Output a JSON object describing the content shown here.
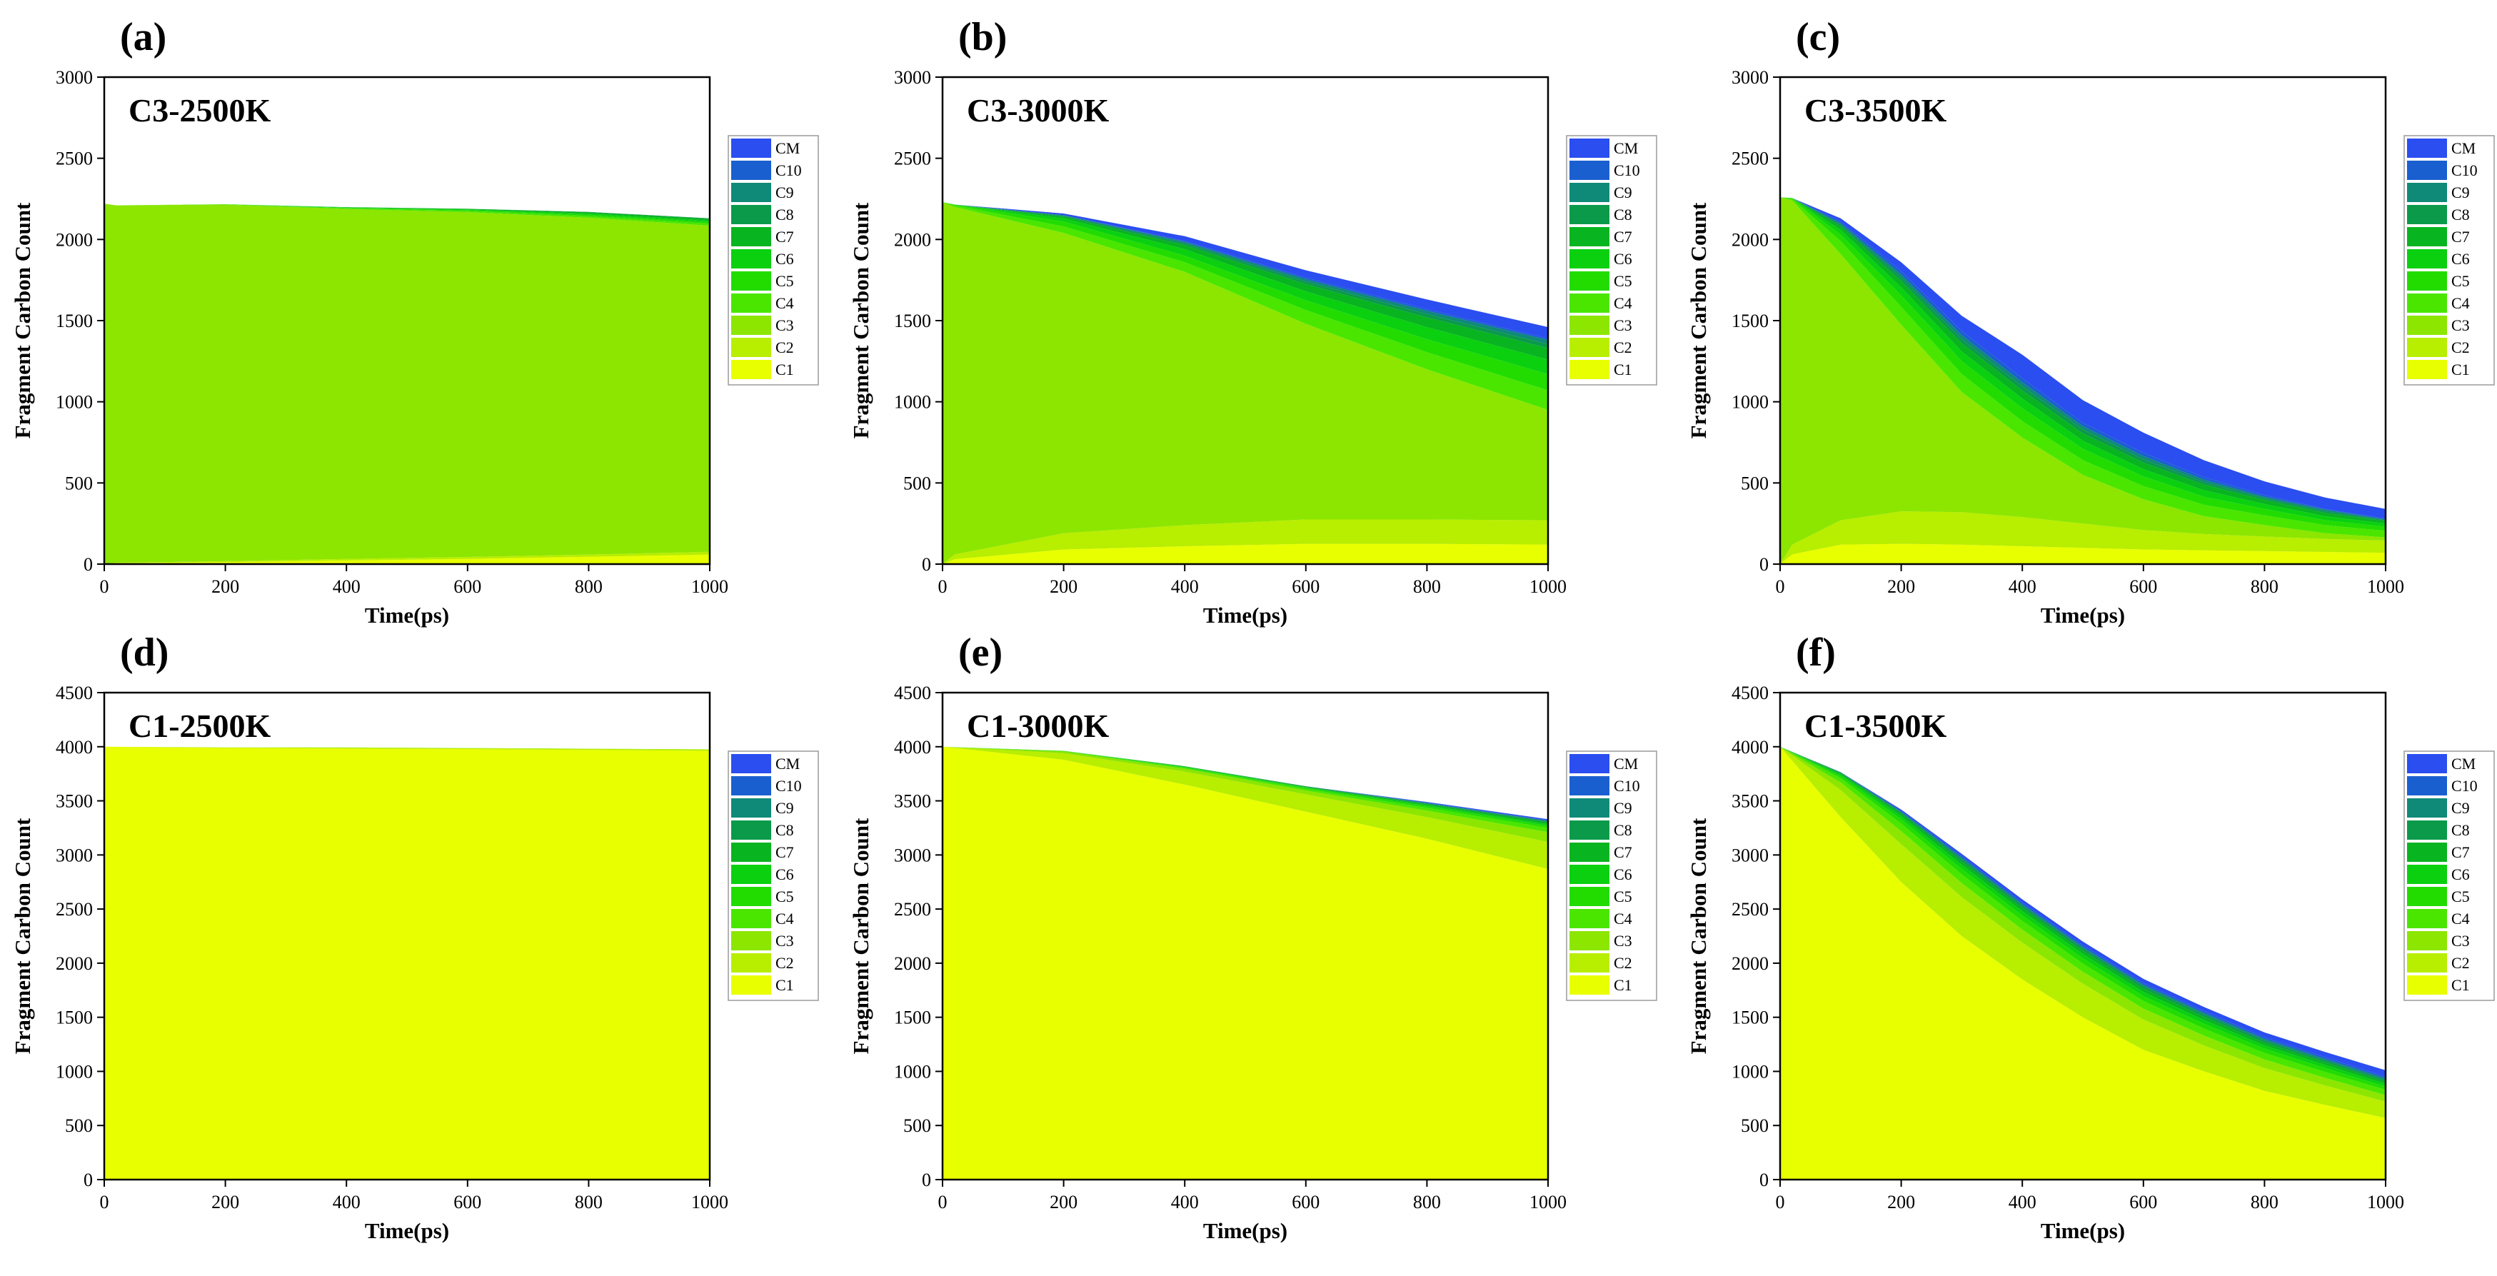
{
  "figure": {
    "legend_colors": {
      "C1": "#e8ff00",
      "C2": "#b8ee00",
      "C3": "#8ce600",
      "C4": "#4ae600",
      "C5": "#22dc00",
      "C6": "#0ad010",
      "C7": "#08b420",
      "C8": "#0a9a4a",
      "C9": "#0f8a78",
      "C10": "#1a5fd0",
      "CM": "#2b4ef0"
    }
  },
  "chart_data": [
    {
      "id": "a",
      "type": "area",
      "stacked": true,
      "panel_label": "(a)",
      "title": "C3-2500K",
      "xlabel": "Time(ps)",
      "ylabel": "Fragment Carbon Count",
      "xlim": [
        0,
        1000
      ],
      "ylim": [
        0,
        3000
      ],
      "xticks": [
        0,
        200,
        400,
        600,
        800,
        1000
      ],
      "yticks": [
        0,
        500,
        1000,
        1500,
        2000,
        2500,
        3000
      ],
      "legend": [
        "CM",
        "C10",
        "C9",
        "C8",
        "C7",
        "C6",
        "C5",
        "C4",
        "C3",
        "C2",
        "C1"
      ],
      "x": [
        0,
        20,
        200,
        400,
        600,
        800,
        1000
      ],
      "series": [
        {
          "name": "C1",
          "values": [
            0,
            6,
            12,
            22,
            32,
            45,
            58
          ]
        },
        {
          "name": "C2",
          "values": [
            0,
            3,
            6,
            10,
            12,
            14,
            18
          ]
        },
        {
          "name": "C3",
          "values": [
            2220,
            2201,
            2197,
            2155,
            2124,
            2075,
            2009
          ]
        },
        {
          "name": "C4",
          "values": [
            0,
            0,
            2,
            5,
            8,
            10,
            12
          ]
        },
        {
          "name": "C5",
          "values": [
            0,
            0,
            0,
            3,
            5,
            8,
            10
          ]
        },
        {
          "name": "C6",
          "values": [
            0,
            0,
            0,
            2,
            4,
            8,
            10
          ]
        },
        {
          "name": "C7",
          "values": [
            0,
            0,
            0,
            2,
            4,
            8,
            10
          ]
        },
        {
          "name": "C8",
          "values": [
            0,
            0,
            0,
            0,
            0,
            2,
            3
          ]
        },
        {
          "name": "C9",
          "values": [
            0,
            0,
            0,
            0,
            0,
            0,
            0
          ]
        },
        {
          "name": "C10",
          "values": [
            0,
            0,
            0,
            0,
            0,
            0,
            0
          ]
        },
        {
          "name": "CM",
          "values": [
            0,
            0,
            0,
            0,
            0,
            0,
            0
          ]
        }
      ]
    },
    {
      "id": "b",
      "type": "area",
      "stacked": true,
      "panel_label": "(b)",
      "title": "C3-3000K",
      "xlabel": "Time(ps)",
      "ylabel": "Fragment Carbon Count",
      "xlim": [
        0,
        1000
      ],
      "ylim": [
        0,
        3000
      ],
      "xticks": [
        0,
        200,
        400,
        600,
        800,
        1000
      ],
      "yticks": [
        0,
        500,
        1000,
        1500,
        2000,
        2500,
        3000
      ],
      "legend": [
        "CM",
        "C10",
        "C9",
        "C8",
        "C7",
        "C6",
        "C5",
        "C4",
        "C3",
        "C2",
        "C1"
      ],
      "x": [
        0,
        20,
        200,
        400,
        600,
        800,
        1000
      ],
      "series": [
        {
          "name": "C1",
          "values": [
            0,
            30,
            90,
            110,
            125,
            125,
            120
          ]
        },
        {
          "name": "C2",
          "values": [
            0,
            30,
            100,
            130,
            150,
            150,
            150
          ]
        },
        {
          "name": "C3",
          "values": [
            2230,
            2140,
            1850,
            1560,
            1205,
            925,
            680
          ]
        },
        {
          "name": "C4",
          "values": [
            0,
            10,
            40,
            60,
            85,
            105,
            120
          ]
        },
        {
          "name": "C5",
          "values": [
            0,
            5,
            30,
            40,
            60,
            80,
            100
          ]
        },
        {
          "name": "C6",
          "values": [
            0,
            0,
            20,
            40,
            55,
            75,
            90
          ]
        },
        {
          "name": "C7",
          "values": [
            0,
            0,
            10,
            25,
            45,
            60,
            70
          ]
        },
        {
          "name": "C8",
          "values": [
            0,
            0,
            5,
            10,
            15,
            20,
            25
          ]
        },
        {
          "name": "C9",
          "values": [
            0,
            0,
            5,
            10,
            15,
            20,
            25
          ]
        },
        {
          "name": "C10",
          "values": [
            0,
            0,
            0,
            5,
            10,
            10,
            10
          ]
        },
        {
          "name": "CM",
          "values": [
            0,
            0,
            10,
            30,
            45,
            60,
            70
          ]
        }
      ]
    },
    {
      "id": "c",
      "type": "area",
      "stacked": true,
      "panel_label": "(c)",
      "title": "C3-3500K",
      "xlabel": "Time(ps)",
      "ylabel": "Fragment Carbon Count",
      "xlim": [
        0,
        1000
      ],
      "ylim": [
        0,
        3000
      ],
      "xticks": [
        0,
        200,
        400,
        600,
        800,
        1000
      ],
      "yticks": [
        0,
        500,
        1000,
        1500,
        2000,
        2500,
        3000
      ],
      "legend": [
        "CM",
        "C10",
        "C9",
        "C8",
        "C7",
        "C6",
        "C5",
        "C4",
        "C3",
        "C2",
        "C1"
      ],
      "x": [
        0,
        20,
        100,
        200,
        300,
        400,
        500,
        600,
        700,
        800,
        900,
        1000
      ],
      "series": [
        {
          "name": "C1",
          "values": [
            0,
            60,
            120,
            125,
            120,
            110,
            100,
            90,
            85,
            80,
            75,
            70
          ]
        },
        {
          "name": "C2",
          "values": [
            0,
            60,
            150,
            200,
            200,
            180,
            150,
            120,
            100,
            90,
            80,
            75
          ]
        },
        {
          "name": "C3",
          "values": [
            2260,
            2120,
            1640,
            1150,
            740,
            490,
            300,
            190,
            110,
            70,
            35,
            20
          ]
        },
        {
          "name": "C4",
          "values": [
            0,
            10,
            80,
            110,
            110,
            100,
            90,
            80,
            70,
            60,
            50,
            40
          ]
        },
        {
          "name": "C5",
          "values": [
            0,
            5,
            40,
            70,
            80,
            80,
            70,
            60,
            50,
            40,
            30,
            25
          ]
        },
        {
          "name": "C6",
          "values": [
            0,
            0,
            30,
            50,
            60,
            60,
            50,
            45,
            40,
            30,
            25,
            20
          ]
        },
        {
          "name": "C7",
          "values": [
            0,
            0,
            20,
            40,
            50,
            50,
            45,
            40,
            35,
            25,
            20,
            15
          ]
        },
        {
          "name": "C8",
          "values": [
            0,
            0,
            10,
            20,
            25,
            25,
            25,
            20,
            15,
            10,
            10,
            5
          ]
        },
        {
          "name": "C9",
          "values": [
            0,
            0,
            10,
            20,
            25,
            25,
            20,
            20,
            15,
            10,
            10,
            5
          ]
        },
        {
          "name": "C10",
          "values": [
            0,
            0,
            10,
            20,
            25,
            25,
            20,
            20,
            15,
            10,
            5,
            5
          ]
        },
        {
          "name": "CM",
          "values": [
            0,
            0,
            20,
            55,
            95,
            145,
            140,
            125,
            105,
            85,
            70,
            60
          ]
        }
      ]
    },
    {
      "id": "d",
      "type": "area",
      "stacked": true,
      "panel_label": "(d)",
      "title": "C1-2500K",
      "xlabel": "Time(ps)",
      "ylabel": "Fragment Carbon Count",
      "xlim": [
        0,
        1000
      ],
      "ylim": [
        0,
        4500
      ],
      "xticks": [
        0,
        200,
        400,
        600,
        800,
        1000
      ],
      "yticks": [
        0,
        500,
        1000,
        1500,
        2000,
        2500,
        3000,
        3500,
        4000,
        4500
      ],
      "legend": [
        "CM",
        "C10",
        "C9",
        "C8",
        "C7",
        "C6",
        "C5",
        "C4",
        "C3",
        "C2",
        "C1"
      ],
      "x": [
        0,
        200,
        400,
        600,
        800,
        1000
      ],
      "series": [
        {
          "name": "C1",
          "values": [
            4000,
            3988,
            3983,
            3978,
            3970,
            3962
          ]
        },
        {
          "name": "C2",
          "values": [
            0,
            6,
            8,
            8,
            10,
            12
          ]
        },
        {
          "name": "C3",
          "values": [
            0,
            0,
            2,
            2,
            2,
            2
          ]
        },
        {
          "name": "C4",
          "values": [
            0,
            0,
            0,
            0,
            0,
            0
          ]
        },
        {
          "name": "C5",
          "values": [
            0,
            0,
            0,
            0,
            0,
            0
          ]
        },
        {
          "name": "C6",
          "values": [
            0,
            0,
            0,
            0,
            0,
            0
          ]
        },
        {
          "name": "C7",
          "values": [
            0,
            0,
            0,
            0,
            0,
            0
          ]
        },
        {
          "name": "C8",
          "values": [
            0,
            0,
            0,
            0,
            0,
            0
          ]
        },
        {
          "name": "C9",
          "values": [
            0,
            0,
            0,
            0,
            0,
            0
          ]
        },
        {
          "name": "C10",
          "values": [
            0,
            0,
            0,
            0,
            0,
            0
          ]
        },
        {
          "name": "CM",
          "values": [
            0,
            0,
            0,
            0,
            0,
            0
          ]
        }
      ]
    },
    {
      "id": "e",
      "type": "area",
      "stacked": true,
      "panel_label": "(e)",
      "title": "C1-3000K",
      "xlabel": "Time(ps)",
      "ylabel": "Fragment Carbon Count",
      "xlim": [
        0,
        1000
      ],
      "ylim": [
        0,
        4500
      ],
      "xticks": [
        0,
        200,
        400,
        600,
        800,
        1000
      ],
      "yticks": [
        0,
        500,
        1000,
        1500,
        2000,
        2500,
        3000,
        3500,
        4000,
        4500
      ],
      "legend": [
        "CM",
        "C10",
        "C9",
        "C8",
        "C7",
        "C6",
        "C5",
        "C4",
        "C3",
        "C2",
        "C1"
      ],
      "x": [
        0,
        200,
        400,
        600,
        800,
        1000
      ],
      "series": [
        {
          "name": "C1",
          "values": [
            4000,
            3880,
            3650,
            3400,
            3150,
            2870
          ]
        },
        {
          "name": "C2",
          "values": [
            0,
            60,
            120,
            160,
            200,
            250
          ]
        },
        {
          "name": "C3",
          "values": [
            0,
            15,
            25,
            35,
            60,
            90
          ]
        },
        {
          "name": "C4",
          "values": [
            0,
            5,
            10,
            15,
            25,
            40
          ]
        },
        {
          "name": "C5",
          "values": [
            0,
            2,
            5,
            10,
            15,
            20
          ]
        },
        {
          "name": "C6",
          "values": [
            0,
            0,
            5,
            5,
            10,
            15
          ]
        },
        {
          "name": "C7",
          "values": [
            0,
            0,
            5,
            5,
            10,
            15
          ]
        },
        {
          "name": "C8",
          "values": [
            0,
            0,
            0,
            5,
            5,
            10
          ]
        },
        {
          "name": "C9",
          "values": [
            0,
            0,
            0,
            0,
            5,
            5
          ]
        },
        {
          "name": "C10",
          "values": [
            0,
            0,
            0,
            0,
            5,
            5
          ]
        },
        {
          "name": "CM",
          "values": [
            0,
            0,
            0,
            0,
            5,
            10
          ]
        }
      ]
    },
    {
      "id": "f",
      "type": "area",
      "stacked": true,
      "panel_label": "(f)",
      "title": "C1-3500K",
      "xlabel": "Time(ps)",
      "ylabel": "Fragment Carbon Count",
      "xlim": [
        0,
        1000
      ],
      "ylim": [
        0,
        4500
      ],
      "xticks": [
        0,
        200,
        400,
        600,
        800,
        1000
      ],
      "yticks": [
        0,
        500,
        1000,
        1500,
        2000,
        2500,
        3000,
        3500,
        4000,
        4500
      ],
      "legend": [
        "CM",
        "C10",
        "C9",
        "C8",
        "C7",
        "C6",
        "C5",
        "C4",
        "C3",
        "C2",
        "C1"
      ],
      "x": [
        0,
        100,
        200,
        300,
        400,
        500,
        600,
        700,
        800,
        900,
        1000
      ],
      "series": [
        {
          "name": "C1",
          "values": [
            4000,
            3350,
            2750,
            2250,
            1850,
            1500,
            1200,
            1000,
            820,
            690,
            570
          ]
        },
        {
          "name": "C2",
          "values": [
            0,
            250,
            350,
            360,
            340,
            310,
            280,
            240,
            210,
            180,
            150
          ]
        },
        {
          "name": "C3",
          "values": [
            0,
            70,
            120,
            130,
            120,
            110,
            100,
            90,
            80,
            70,
            60
          ]
        },
        {
          "name": "C4",
          "values": [
            0,
            40,
            70,
            80,
            80,
            75,
            70,
            65,
            60,
            55,
            50
          ]
        },
        {
          "name": "C5",
          "values": [
            0,
            20,
            40,
            50,
            50,
            50,
            45,
            45,
            40,
            35,
            30
          ]
        },
        {
          "name": "C6",
          "values": [
            0,
            15,
            30,
            40,
            40,
            40,
            40,
            35,
            30,
            30,
            25
          ]
        },
        {
          "name": "C7",
          "values": [
            0,
            10,
            20,
            30,
            30,
            30,
            30,
            30,
            25,
            25,
            20
          ]
        },
        {
          "name": "C8",
          "values": [
            0,
            5,
            10,
            20,
            20,
            20,
            20,
            20,
            20,
            15,
            15
          ]
        },
        {
          "name": "C9",
          "values": [
            0,
            5,
            10,
            15,
            15,
            15,
            15,
            15,
            15,
            15,
            15
          ]
        },
        {
          "name": "C10",
          "values": [
            0,
            0,
            10,
            15,
            15,
            15,
            15,
            15,
            15,
            15,
            15
          ]
        },
        {
          "name": "CM",
          "values": [
            0,
            0,
            10,
            20,
            30,
            35,
            40,
            40,
            45,
            50,
            60
          ]
        }
      ]
    }
  ]
}
